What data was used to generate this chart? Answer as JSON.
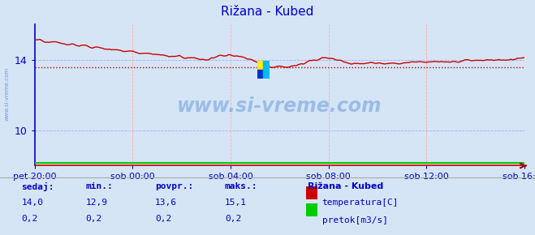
{
  "title": "Rižana - Kubed",
  "bg_color": "#d5e5f5",
  "plot_bg_color": "#d5e5f5",
  "grid_color_h": "#aaaaff",
  "grid_color_v": "#ffaaaa",
  "x_labels": [
    "pet 20:00",
    "sob 00:00",
    "sob 04:00",
    "sob 08:00",
    "sob 12:00",
    "sob 16:00"
  ],
  "ylim_temp": [
    8.0,
    16.0
  ],
  "y_ticks_temp": [
    10,
    14
  ],
  "temp_color": "#cc0000",
  "pretok_color": "#00cc00",
  "avg_line_color": "#cc0000",
  "avg_value": 13.6,
  "temp_min": 12.9,
  "temp_max": 15.1,
  "temp_current": 14.0,
  "pretok_current": 0.2,
  "pretok_min": 0.2,
  "pretok_avg": 0.2,
  "pretok_max": 0.2,
  "watermark_text": "www.si-vreme.com",
  "watermark_color": "#1a5fcc",
  "label_color": "#0000cc",
  "legend_title": "Rižana - Kubed",
  "legend_items": [
    "temperatura[C]",
    "pretok[m3/s]"
  ],
  "legend_colors": [
    "#cc0000",
    "#00cc00"
  ],
  "footer_labels": [
    "sedaj:",
    "min.:",
    "povpr.:",
    "maks.:"
  ],
  "footer_color": "#0000cc",
  "axis_color": "#0000cc",
  "arrow_color": "#990000",
  "separator_color": "#aaaaaa",
  "left_spine_color": "#0000cc",
  "bottom_spine_color": "#cc0000"
}
